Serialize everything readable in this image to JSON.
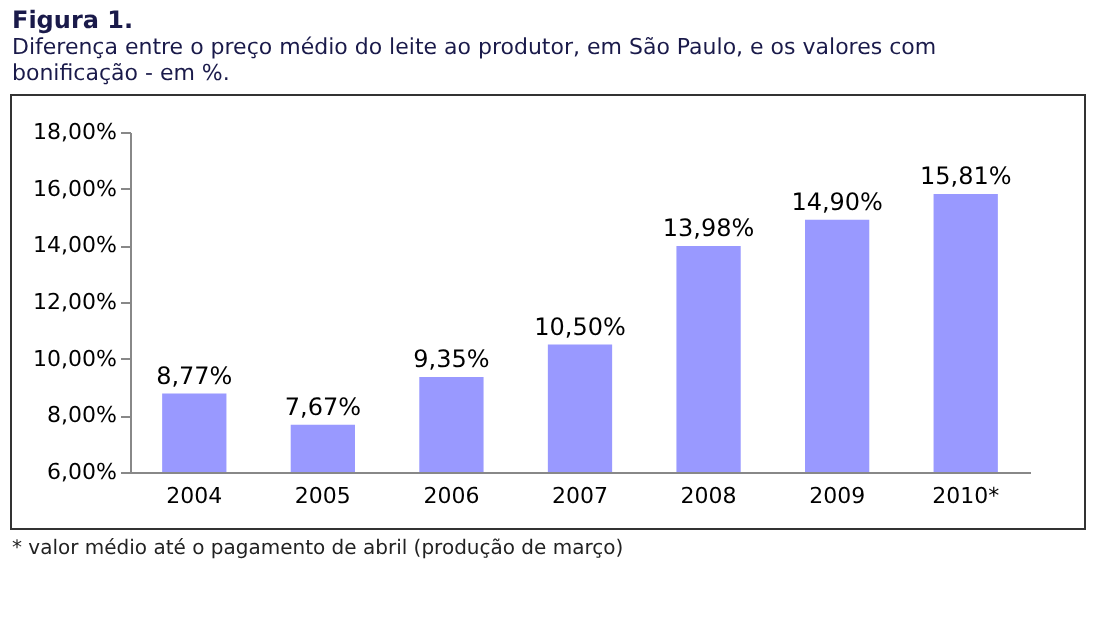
{
  "chart_data": {
    "type": "bar",
    "title": "Figura 1.",
    "subtitle": "Diferença entre o preço médio do leite ao produtor, em São Paulo, e os valores com bonificação - em %.",
    "categories": [
      "2004",
      "2005",
      "2006",
      "2007",
      "2008",
      "2009",
      "2010*"
    ],
    "values": [
      8.77,
      7.67,
      9.35,
      10.5,
      13.98,
      14.9,
      15.81
    ],
    "value_labels": [
      "8,77%",
      "7,67%",
      "9,35%",
      "10,50%",
      "13,98%",
      "14,90%",
      "15,81%"
    ],
    "color": "#9999ff",
    "ylim": [
      6,
      18
    ],
    "yticks": [
      {
        "value": 6,
        "label": "6,00%"
      },
      {
        "value": 8,
        "label": "8,00%"
      },
      {
        "value": 10,
        "label": "10,00%"
      },
      {
        "value": 12,
        "label": "12,00%"
      },
      {
        "value": 14,
        "label": "14,00%"
      },
      {
        "value": 16,
        "label": "16,00%"
      },
      {
        "value": 18,
        "label": "18,00%"
      }
    ],
    "grid": false,
    "annotations": [
      "* valor médio até o pagamento de abril (produção de março)"
    ]
  }
}
